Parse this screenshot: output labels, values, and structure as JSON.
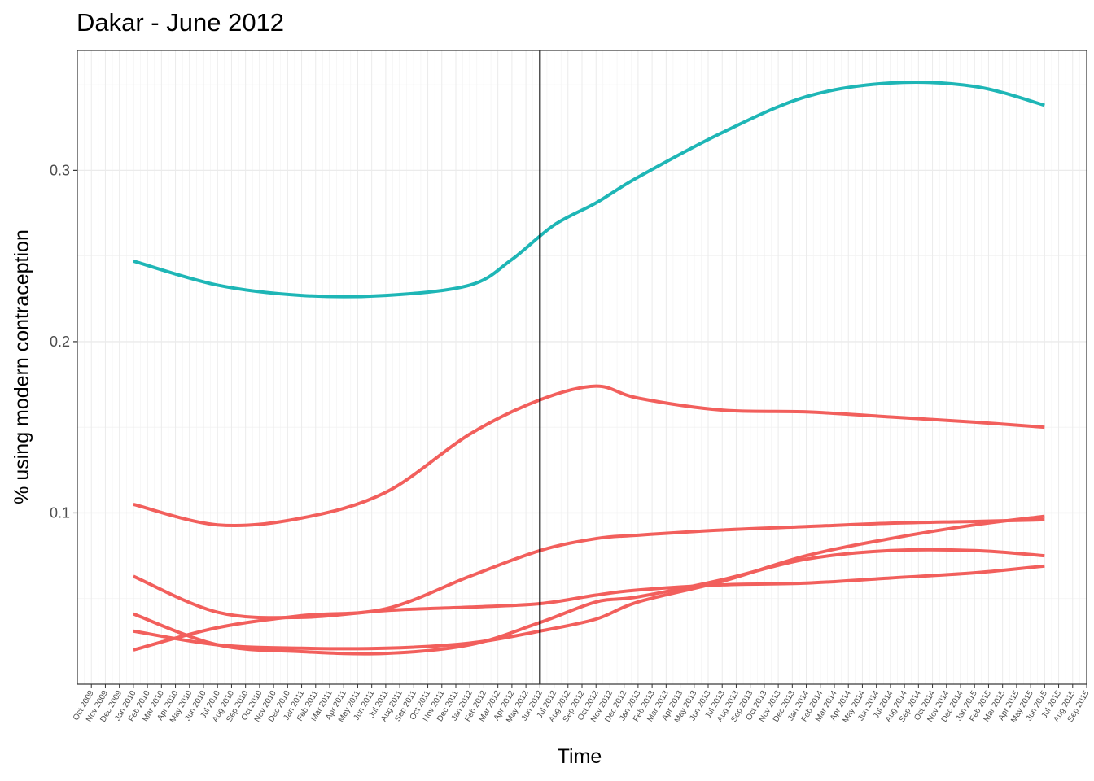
{
  "chart_data": {
    "type": "line",
    "title": "Dakar - June 2012",
    "xlabel": "Time",
    "ylabel": "% using modern contraception",
    "x_ticks": [
      "Oct 2009",
      "Nov 2009",
      "Dec 2009",
      "Jan 2010",
      "Feb 2010",
      "Mar 2010",
      "Apr 2010",
      "May 2010",
      "Jun 2010",
      "Jul 2010",
      "Aug 2010",
      "Sep 2010",
      "Oct 2010",
      "Nov 2010",
      "Dec 2010",
      "Jan 2011",
      "Feb 2011",
      "Mar 2011",
      "Apr 2011",
      "May 2011",
      "Jun 2011",
      "Jul 2011",
      "Aug 2011",
      "Sep 2011",
      "Oct 2011",
      "Nov 2011",
      "Dec 2011",
      "Jan 2012",
      "Feb 2012",
      "Mar 2012",
      "Apr 2012",
      "May 2012",
      "Jun 2012",
      "Jul 2012",
      "Aug 2012",
      "Sep 2012",
      "Oct 2012",
      "Nov 2012",
      "Dec 2012",
      "Jan 2013",
      "Feb 2013",
      "Mar 2013",
      "Apr 2013",
      "May 2013",
      "Jun 2013",
      "Jul 2013",
      "Aug 2013",
      "Sep 2013",
      "Oct 2013",
      "Nov 2013",
      "Dec 2013",
      "Jan 2014",
      "Feb 2014",
      "Mar 2014",
      "Apr 2014",
      "May 2014",
      "Jun 2014",
      "Jul 2014",
      "Aug 2014",
      "Sep 2014",
      "Oct 2014",
      "Nov 2014",
      "Dec 2014",
      "Jan 2015",
      "Feb 2015",
      "Mar 2015",
      "Apr 2015",
      "May 2015",
      "Jun 2015",
      "Jul 2015",
      "Aug 2015",
      "Sep 2015"
    ],
    "y_ticks": [
      0.1,
      0.2,
      0.3
    ],
    "y_tick_labels": [
      "0.1",
      "0.2",
      "0.3"
    ],
    "x_range": [
      "Sep 2009",
      "Sep 2015"
    ],
    "y_range": [
      0.0,
      0.37
    ],
    "grid": true,
    "reference_line": {
      "x": "Jun 2012",
      "color": "#000000"
    },
    "series": [
      {
        "color": "#1eb6b6",
        "x": [
          "Jan 2010",
          "Jul 2010",
          "Jan 2011",
          "Jul 2011",
          "Jan 2012",
          "Apr 2012",
          "Jul 2012",
          "Oct 2012",
          "Jan 2013",
          "Jul 2013",
          "Jan 2014",
          "Jul 2014",
          "Jan 2015",
          "Jun 2015"
        ],
        "y": [
          0.247,
          0.233,
          0.227,
          0.227,
          0.233,
          0.248,
          0.268,
          0.281,
          0.296,
          0.322,
          0.343,
          0.351,
          0.349,
          0.338
        ]
      },
      {
        "color": "#f25f5c",
        "x": [
          "Jan 2010",
          "Jul 2010",
          "Jan 2011",
          "Jul 2011",
          "Jan 2012",
          "Jun 2012",
          "Oct 2012",
          "Jan 2013",
          "Jul 2013",
          "Jan 2014",
          "Jul 2014",
          "Jan 2015",
          "Jun 2015"
        ],
        "y": [
          0.105,
          0.093,
          0.097,
          0.112,
          0.146,
          0.166,
          0.174,
          0.167,
          0.16,
          0.159,
          0.156,
          0.153,
          0.15
        ]
      },
      {
        "color": "#f25f5c",
        "x": [
          "Jan 2010",
          "Jul 2010",
          "Jan 2011",
          "Jul 2011",
          "Jan 2012",
          "Jun 2012",
          "Oct 2012",
          "Jan 2013",
          "Jul 2013",
          "Jan 2014",
          "Jul 2014",
          "Jan 2015",
          "Jun 2015"
        ],
        "y": [
          0.063,
          0.042,
          0.039,
          0.043,
          0.045,
          0.047,
          0.052,
          0.055,
          0.058,
          0.059,
          0.062,
          0.065,
          0.069
        ]
      },
      {
        "color": "#f25f5c",
        "x": [
          "Jan 2010",
          "Jul 2010",
          "Jan 2011",
          "Jul 2011",
          "Jan 2012",
          "Jun 2012",
          "Oct 2012",
          "Jan 2013",
          "Jul 2013",
          "Jan 2014",
          "Jul 2014",
          "Jan 2015",
          "Jun 2015"
        ],
        "y": [
          0.02,
          0.033,
          0.04,
          0.044,
          0.063,
          0.078,
          0.085,
          0.087,
          0.09,
          0.092,
          0.094,
          0.095,
          0.096
        ]
      },
      {
        "color": "#f25f5c",
        "x": [
          "Jan 2010",
          "Jul 2010",
          "Jan 2011",
          "Jul 2011",
          "Jan 2012",
          "Jun 2012",
          "Oct 2012",
          "Jan 2013",
          "Jul 2013",
          "Jan 2014",
          "Jul 2014",
          "Jan 2015",
          "Jun 2015"
        ],
        "y": [
          0.041,
          0.023,
          0.019,
          0.018,
          0.023,
          0.036,
          0.048,
          0.051,
          0.061,
          0.073,
          0.078,
          0.078,
          0.075
        ]
      },
      {
        "color": "#f25f5c",
        "x": [
          "Jan 2010",
          "Jul 2010",
          "Jan 2011",
          "Jul 2011",
          "Jan 2012",
          "Jun 2012",
          "Oct 2012",
          "Jan 2013",
          "Jul 2013",
          "Jan 2014",
          "Jul 2014",
          "Jan 2015",
          "Jun 2015"
        ],
        "y": [
          0.031,
          0.023,
          0.021,
          0.021,
          0.024,
          0.031,
          0.038,
          0.048,
          0.06,
          0.075,
          0.085,
          0.093,
          0.098
        ]
      }
    ]
  }
}
